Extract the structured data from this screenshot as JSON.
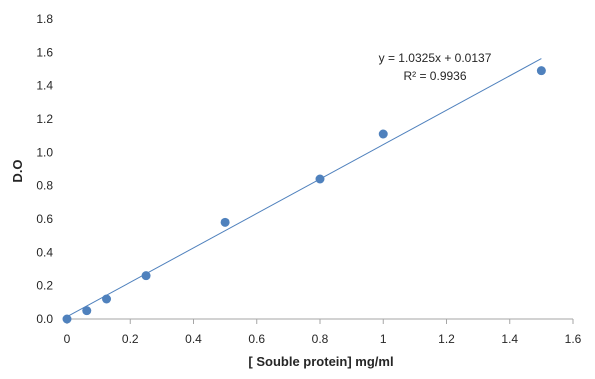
{
  "chart_data": {
    "type": "scatter",
    "xlabel": "[ Souble protein] mg/ml",
    "ylabel": "D.O",
    "xlim": [
      0,
      1.6
    ],
    "ylim": [
      0,
      1.8
    ],
    "x_ticks": [
      "0",
      "0.2",
      "0.4",
      "0.6",
      "0.8",
      "1",
      "1.2",
      "1.4",
      "1.6"
    ],
    "y_ticks": [
      "0.0",
      "0.2",
      "0.4",
      "0.6",
      "0.8",
      "1.0",
      "1.2",
      "1.4",
      "1.6",
      "1.8"
    ],
    "grid": false,
    "legend": "none",
    "series": [
      {
        "color": "#4f81bd",
        "points": [
          {
            "x": 0,
            "y": 0.0
          },
          {
            "x": 0.0625,
            "y": 0.05
          },
          {
            "x": 0.125,
            "y": 0.12
          },
          {
            "x": 0.25,
            "y": 0.26
          },
          {
            "x": 0.5,
            "y": 0.58
          },
          {
            "x": 0.8,
            "y": 0.84
          },
          {
            "x": 1.0,
            "y": 1.11
          },
          {
            "x": 1.5,
            "y": 1.49
          }
        ]
      }
    ],
    "trendline": {
      "slope": 1.0325,
      "intercept": 0.0137,
      "x_range": [
        0,
        1.5
      ],
      "color": "#4f81bd"
    },
    "annotations": {
      "equation": "y = 1.0325x + 0.0137",
      "r_squared": "R² = 0.9936"
    },
    "colors": {
      "axis": "#a6a6a6",
      "text": "#262626"
    }
  }
}
